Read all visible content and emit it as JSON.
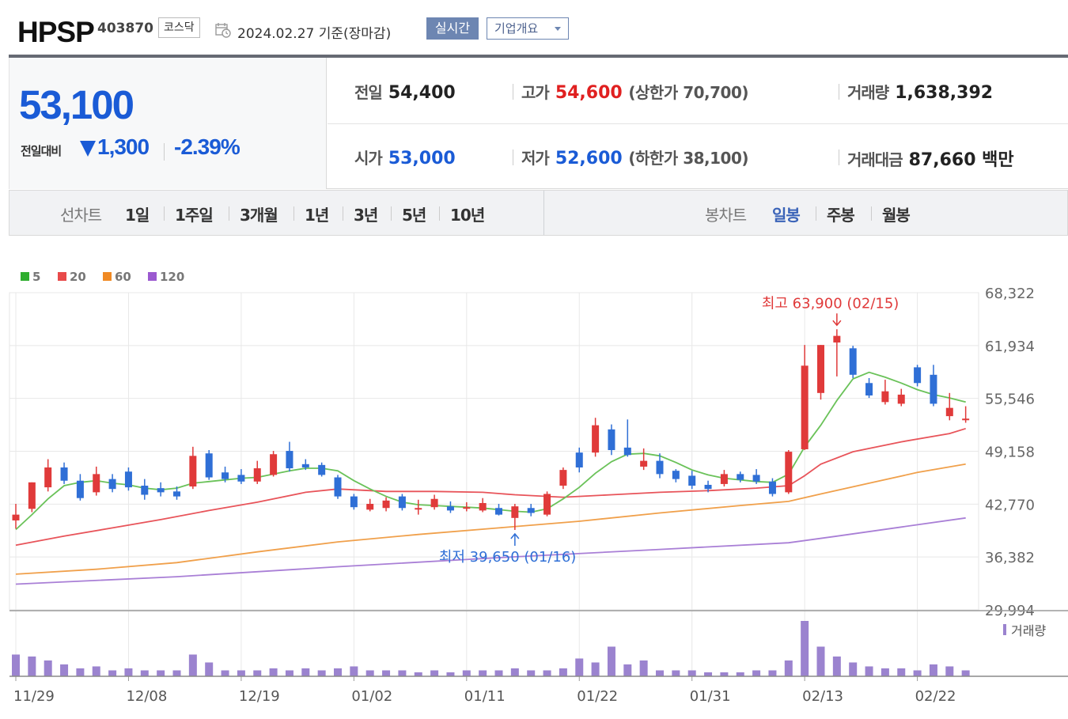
{
  "header": {
    "name": "HPSP",
    "code": "403870",
    "market": "코스닥",
    "date": "2024.02.27 기준(장마감)",
    "realtime": "실시간",
    "overview": "기업개요"
  },
  "summary": {
    "price": "53,100",
    "change_label": "전일대비",
    "change_amount": "1,300",
    "change_percent": "-2.39%",
    "stats": {
      "prev_label": "전일",
      "prev": "54,400",
      "high_label": "고가",
      "high": "54,600",
      "upper_limit": "(상한가 70,700)",
      "volume_label": "거래량",
      "volume": "1,638,392",
      "open_label": "시가",
      "open": "53,000",
      "low_label": "저가",
      "low": "52,600",
      "lower_limit": "(하한가 38,100)",
      "amount_label": "거래대금",
      "amount": "87,660 백만"
    }
  },
  "period_tabs": {
    "line_label": "선차트",
    "line": [
      "1일",
      "1주일",
      "3개월",
      "1년",
      "3년",
      "5년",
      "10년"
    ],
    "candle_label": "봉차트",
    "candle": [
      "일봉",
      "주봉",
      "월봉"
    ],
    "active_candle": "일봉"
  },
  "colors": {
    "up": "#e03a3a",
    "down": "#2f6fd6",
    "ma5": "#6ac259",
    "ma20": "#e8545a",
    "ma60": "#f0a04b",
    "ma120": "#a97fd6",
    "volume": "#9b83cf",
    "active_tab": "#3a63b8"
  },
  "chart_data": {
    "type": "candlestick",
    "legend": [
      {
        "label": "5",
        "color": "#2fae2f"
      },
      {
        "label": "20",
        "color": "#e84a4a"
      },
      {
        "label": "60",
        "color": "#f08a24"
      },
      {
        "label": "120",
        "color": "#9b59d0"
      }
    ],
    "yticks": [
      "68,322",
      "61,934",
      "55,546",
      "49,158",
      "42,770",
      "36,382",
      "29,994"
    ],
    "ylim": [
      29994,
      68322
    ],
    "xticks": [
      "11/29",
      "12/08",
      "12/19",
      "01/02",
      "01/11",
      "01/22",
      "01/31",
      "02/13",
      "02/22"
    ],
    "xtick_index": [
      0,
      7,
      14,
      21,
      28,
      35,
      42,
      49,
      56
    ],
    "volume_label": "거래량",
    "annotations": {
      "high": {
        "text": "최고 63,900 (02/15)",
        "index": 51,
        "value": 63900
      },
      "low": {
        "text": "최저 39,650 (01/16)",
        "index": 31,
        "value": 39650
      }
    },
    "candles": [
      [
        40800,
        41500,
        39800,
        42800
      ],
      [
        42200,
        45400,
        41800,
        45400
      ],
      [
        44800,
        47200,
        44300,
        48200
      ],
      [
        47200,
        45600,
        45200,
        47800
      ],
      [
        45600,
        43500,
        43200,
        46400
      ],
      [
        44200,
        46400,
        43800,
        47300
      ],
      [
        45800,
        44600,
        44200,
        46400
      ],
      [
        46700,
        44800,
        44400,
        47200
      ],
      [
        45000,
        43900,
        43300,
        45800
      ],
      [
        44700,
        44200,
        43700,
        45400
      ],
      [
        44300,
        43700,
        43300,
        44900
      ],
      [
        44900,
        48600,
        44600,
        49700
      ],
      [
        48900,
        46000,
        45700,
        49300
      ],
      [
        46600,
        45800,
        45400,
        47300
      ],
      [
        46300,
        45500,
        45200,
        47000
      ],
      [
        45500,
        47100,
        45200,
        48000
      ],
      [
        46300,
        48800,
        46100,
        49200
      ],
      [
        49200,
        47100,
        46700,
        50300
      ],
      [
        47600,
        47200,
        46900,
        48200
      ],
      [
        47500,
        46300,
        46100,
        47800
      ],
      [
        46000,
        43700,
        43400,
        46300
      ],
      [
        43700,
        42400,
        42100,
        44000
      ],
      [
        42100,
        42800,
        41900,
        43400
      ],
      [
        42300,
        43200,
        41900,
        43600
      ],
      [
        43700,
        42300,
        42000,
        44000
      ],
      [
        42200,
        42300,
        41500,
        43300
      ],
      [
        42400,
        43400,
        42100,
        43900
      ],
      [
        42500,
        42000,
        41700,
        43100
      ],
      [
        42300,
        42400,
        41900,
        43000
      ],
      [
        42000,
        42900,
        41800,
        43500
      ],
      [
        42300,
        41500,
        41400,
        42800
      ],
      [
        41100,
        42500,
        39650,
        42800
      ],
      [
        42300,
        41700,
        41300,
        42800
      ],
      [
        41500,
        44000,
        41300,
        44300
      ],
      [
        45000,
        46900,
        44600,
        47200
      ],
      [
        49000,
        47200,
        46600,
        49600
      ],
      [
        49000,
        52300,
        48500,
        53200
      ],
      [
        51800,
        49300,
        48700,
        52400
      ],
      [
        49600,
        48700,
        48500,
        53000
      ],
      [
        47300,
        48000,
        46900,
        49500
      ],
      [
        48000,
        46400,
        45900,
        48900
      ],
      [
        46800,
        45800,
        45400,
        47000
      ],
      [
        46200,
        45000,
        44600,
        46800
      ],
      [
        45100,
        44600,
        44200,
        45600
      ],
      [
        45200,
        46400,
        44900,
        46900
      ],
      [
        46400,
        45700,
        45400,
        46700
      ],
      [
        46300,
        45500,
        45200,
        47000
      ],
      [
        45500,
        44000,
        43700,
        45900
      ],
      [
        44200,
        49100,
        44000,
        49300
      ],
      [
        49400,
        59500,
        49300,
        62000
      ],
      [
        56200,
        62000,
        55400,
        62000
      ],
      [
        62300,
        63100,
        58200,
        63900
      ],
      [
        61600,
        58400,
        58000,
        61900
      ],
      [
        57400,
        55900,
        55600,
        58000
      ],
      [
        55100,
        56400,
        54800,
        57800
      ],
      [
        54900,
        56000,
        54600,
        56700
      ],
      [
        59300,
        57400,
        57000,
        59600
      ],
      [
        58400,
        54900,
        54600,
        59600
      ],
      [
        53400,
        54400,
        52900,
        56200
      ],
      [
        53000,
        53100,
        52600,
        54600
      ]
    ],
    "ma5": [
      [
        0,
        39700
      ],
      [
        1,
        41500
      ],
      [
        2,
        43400
      ],
      [
        3,
        45000
      ],
      [
        4,
        45400
      ],
      [
        5,
        45600
      ],
      [
        6,
        45300
      ],
      [
        7,
        45100
      ],
      [
        8,
        44700
      ],
      [
        9,
        44500
      ],
      [
        10,
        44700
      ],
      [
        11,
        45300
      ],
      [
        12,
        45500
      ],
      [
        13,
        45700
      ],
      [
        14,
        45900
      ],
      [
        15,
        46000
      ],
      [
        16,
        46400
      ],
      [
        17,
        46800
      ],
      [
        18,
        47100
      ],
      [
        19,
        47100
      ],
      [
        20,
        46800
      ],
      [
        21,
        45600
      ],
      [
        22,
        44600
      ],
      [
        23,
        43700
      ],
      [
        24,
        43000
      ],
      [
        25,
        42700
      ],
      [
        26,
        42600
      ],
      [
        27,
        42500
      ],
      [
        28,
        42400
      ],
      [
        29,
        42300
      ],
      [
        30,
        42100
      ],
      [
        31,
        41900
      ],
      [
        32,
        41800
      ],
      [
        33,
        42200
      ],
      [
        34,
        43400
      ],
      [
        35,
        44800
      ],
      [
        36,
        46500
      ],
      [
        37,
        47900
      ],
      [
        38,
        48800
      ],
      [
        39,
        48900
      ],
      [
        40,
        48600
      ],
      [
        41,
        47800
      ],
      [
        42,
        46900
      ],
      [
        43,
        46300
      ],
      [
        44,
        45900
      ],
      [
        45,
        45700
      ],
      [
        46,
        45500
      ],
      [
        47,
        45400
      ],
      [
        48,
        46400
      ],
      [
        49,
        49700
      ],
      [
        50,
        52300
      ],
      [
        51,
        55300
      ],
      [
        52,
        57900
      ],
      [
        53,
        58700
      ],
      [
        54,
        58100
      ],
      [
        55,
        57400
      ],
      [
        56,
        56600
      ],
      [
        57,
        56000
      ],
      [
        58,
        55600
      ],
      [
        59,
        55100
      ]
    ],
    "ma20": [
      [
        0,
        37800
      ],
      [
        3,
        38900
      ],
      [
        6,
        39900
      ],
      [
        9,
        40900
      ],
      [
        12,
        42000
      ],
      [
        15,
        43000
      ],
      [
        18,
        44200
      ],
      [
        20,
        44600
      ],
      [
        23,
        44300
      ],
      [
        26,
        44300
      ],
      [
        29,
        44200
      ],
      [
        31,
        43900
      ],
      [
        34,
        43600
      ],
      [
        37,
        43900
      ],
      [
        40,
        44200
      ],
      [
        43,
        44400
      ],
      [
        46,
        44700
      ],
      [
        48,
        45000
      ],
      [
        49,
        46200
      ],
      [
        50,
        47600
      ],
      [
        52,
        49100
      ],
      [
        55,
        50300
      ],
      [
        58,
        51300
      ],
      [
        59,
        51900
      ]
    ],
    "ma60": [
      [
        0,
        34300
      ],
      [
        5,
        34900
      ],
      [
        10,
        35700
      ],
      [
        15,
        37000
      ],
      [
        20,
        38200
      ],
      [
        25,
        39100
      ],
      [
        30,
        39900
      ],
      [
        35,
        40700
      ],
      [
        40,
        41700
      ],
      [
        45,
        42600
      ],
      [
        48,
        43100
      ],
      [
        50,
        44000
      ],
      [
        53,
        45300
      ],
      [
        56,
        46600
      ],
      [
        59,
        47600
      ]
    ],
    "ma120": [
      [
        0,
        33100
      ],
      [
        10,
        34000
      ],
      [
        20,
        35200
      ],
      [
        30,
        36300
      ],
      [
        40,
        37300
      ],
      [
        48,
        38100
      ],
      [
        51,
        38900
      ],
      [
        55,
        40000
      ],
      [
        59,
        41100
      ]
    ],
    "volume": [
      11,
      10,
      8,
      6,
      4,
      5,
      3,
      4,
      3,
      3,
      3,
      11,
      7,
      3,
      3,
      3,
      4,
      3,
      4,
      3,
      4,
      5,
      3,
      3,
      3,
      2,
      3,
      2,
      3,
      3,
      3,
      4,
      3,
      3,
      4,
      9,
      7,
      15,
      6,
      8,
      3,
      3,
      3,
      2,
      2,
      2,
      3,
      3,
      8,
      28,
      15,
      10,
      7,
      5,
      4,
      4,
      3,
      6,
      5,
      3
    ]
  }
}
